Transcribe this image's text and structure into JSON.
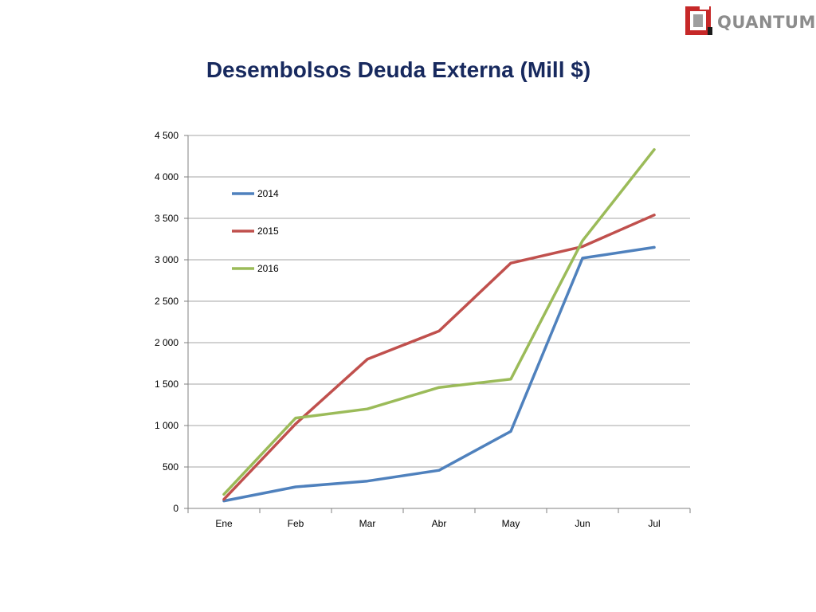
{
  "logo": {
    "text": "QUANTUM"
  },
  "colors": {
    "title": "#17295e",
    "s2014": "#4f81bd",
    "s2015": "#c0504d",
    "s2016": "#9bbb59",
    "grid": "#a6a6a6"
  },
  "chart_data": {
    "type": "line",
    "title": "Desembolsos Deuda Externa (Mill $)",
    "categories": [
      "Ene",
      "Feb",
      "Mar",
      "Abr",
      "May",
      "Jun",
      "Jul"
    ],
    "ylim": [
      0,
      4500
    ],
    "yticks": [
      0,
      500,
      1000,
      1500,
      2000,
      2500,
      3000,
      3500,
      4000,
      4500
    ],
    "ytick_labels": [
      "0",
      "500",
      "1 000",
      "1 500",
      "2 000",
      "2 500",
      "3 000",
      "3 500",
      "4 000",
      "4 500"
    ],
    "grid": true,
    "legend_position": "top-left",
    "series": [
      {
        "name": "2014",
        "color": "#4f81bd",
        "values": [
          90,
          260,
          330,
          460,
          930,
          3020,
          3150
        ]
      },
      {
        "name": "2015",
        "color": "#c0504d",
        "values": [
          110,
          1020,
          1800,
          2140,
          2960,
          3160,
          3540
        ]
      },
      {
        "name": "2016",
        "color": "#9bbb59",
        "values": [
          170,
          1090,
          1200,
          1460,
          1560,
          3230,
          4330
        ]
      }
    ]
  }
}
